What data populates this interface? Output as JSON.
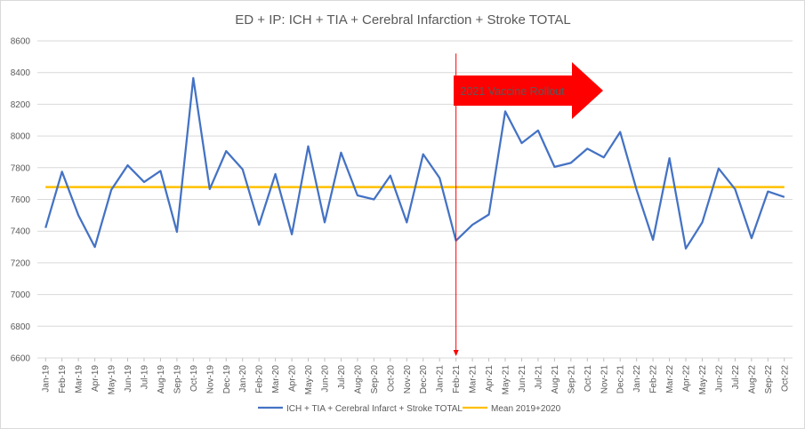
{
  "chart_data": {
    "type": "line",
    "title": "ED + IP: ICH + TIA + Cerebral Infarction + Stroke TOTAL",
    "xlabel": "",
    "ylabel": "",
    "ylim": [
      6600,
      8600
    ],
    "yticks": [
      6600,
      6800,
      7000,
      7200,
      7400,
      7600,
      7800,
      8000,
      8200,
      8400,
      8600
    ],
    "grid": true,
    "legend_position": "bottom",
    "categories": [
      "Jan-19",
      "Feb-19",
      "Mar-19",
      "Apr-19",
      "May-19",
      "Jun-19",
      "Jul-19",
      "Aug-19",
      "Sep-19",
      "Oct-19",
      "Nov-19",
      "Dec-19",
      "Jan-20",
      "Feb-20",
      "Mar-20",
      "Apr-20",
      "May-20",
      "Jun-20",
      "Jul-20",
      "Aug-20",
      "Sep-20",
      "Oct-20",
      "Nov-20",
      "Dec-20",
      "Jan-21",
      "Feb-21",
      "Mar-21",
      "Apr-21",
      "May-21",
      "Jun-21",
      "Jul-21",
      "Aug-21",
      "Sep-21",
      "Oct-21",
      "Nov-21",
      "Dec-21",
      "Jan-22",
      "Feb-22",
      "Mar-22",
      "Apr-22",
      "May-22",
      "Jun-22",
      "Jul-22",
      "Aug-22",
      "Sep-22",
      "Oct-22"
    ],
    "series": [
      {
        "name": "ICH + TIA + Cerebral Infarct + Stroke TOTAL",
        "color": "#4472c4",
        "values": [
          7420,
          7775,
          7500,
          7300,
          7660,
          7815,
          7710,
          7780,
          7395,
          8365,
          7665,
          7905,
          7790,
          7440,
          7760,
          7380,
          7935,
          7455,
          7895,
          7625,
          7600,
          7750,
          7455,
          7885,
          7735,
          7340,
          7440,
          7505,
          8155,
          7955,
          8035,
          7805,
          7830,
          7920,
          7865,
          8025,
          7660,
          7345,
          7860,
          7290,
          7455,
          7795,
          7665,
          7355,
          7650,
          7615
        ]
      },
      {
        "name": "Mean 2019+2020",
        "color": "#ffc000",
        "values": [
          7678,
          7678,
          7678,
          7678,
          7678,
          7678,
          7678,
          7678,
          7678,
          7678,
          7678,
          7678,
          7678,
          7678,
          7678,
          7678,
          7678,
          7678,
          7678,
          7678,
          7678,
          7678,
          7678,
          7678,
          7678,
          7678,
          7678,
          7678,
          7678,
          7678,
          7678,
          7678,
          7678,
          7678,
          7678,
          7678,
          7678,
          7678,
          7678,
          7678,
          7678,
          7678,
          7678,
          7678,
          7678,
          7678
        ]
      }
    ],
    "annotations": [
      {
        "kind": "vertical-arrow",
        "category": "Feb-21",
        "from_value": 8520,
        "to_value": 6600,
        "color": "#ff0000"
      },
      {
        "kind": "block-arrow",
        "text": "2021 Vaccine Rollout",
        "color": "#ff0000"
      }
    ]
  }
}
